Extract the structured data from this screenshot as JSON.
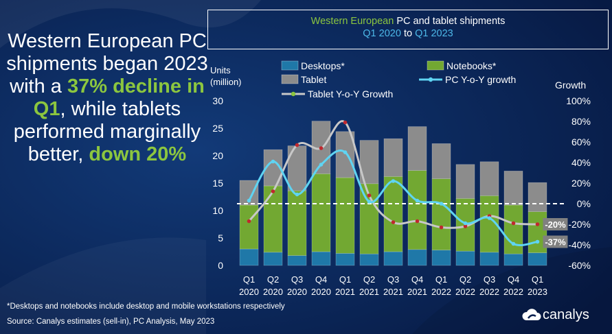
{
  "headline": {
    "p1": "Western European PC shipments began 2023 with a ",
    "h1": "37% decline in Q1",
    "p2": ", while tablets performed marginally better, ",
    "h2": "down 20%"
  },
  "title": {
    "w1": "Western European",
    "w2": " PC and tablet shipments",
    "w3": "Q1 2020",
    "w4": " to ",
    "w5": "Q1 2023"
  },
  "colors": {
    "desktop": "#1f78a8",
    "notebook": "#72a832",
    "tablet": "#8c8c8c",
    "pc_growth": "#5fd4f2",
    "tablet_growth": "#c8c8c8",
    "tablet_marker": "#c0282e"
  },
  "chart_data": {
    "type": "bar",
    "stacked": true,
    "categories": [
      [
        "Q1",
        "2020"
      ],
      [
        "Q2",
        "2020"
      ],
      [
        "Q3",
        "2020"
      ],
      [
        "Q4",
        "2020"
      ],
      [
        "Q1",
        "2021"
      ],
      [
        "Q2",
        "2021"
      ],
      [
        "Q3",
        "2021"
      ],
      [
        "Q4",
        "2021"
      ],
      [
        "Q1",
        "2022"
      ],
      [
        "Q2",
        "2022"
      ],
      [
        "Q3",
        "2022"
      ],
      [
        "Q4",
        "2022"
      ],
      [
        "Q1",
        "2023"
      ]
    ],
    "series": [
      {
        "name": "Desktops*",
        "values": [
          3.0,
          2.4,
          1.8,
          2.5,
          2.2,
          2.1,
          2.5,
          2.9,
          2.8,
          2.6,
          2.4,
          2.1,
          2.3
        ]
      },
      {
        "name": "Notebooks*",
        "values": [
          8.0,
          12.1,
          11.8,
          14.2,
          13.8,
          12.8,
          13.7,
          14.4,
          13.0,
          9.6,
          10.3,
          8.9,
          7.5
        ]
      },
      {
        "name": "Tablet",
        "values": [
          4.5,
          6.6,
          8.2,
          9.6,
          8.4,
          7.9,
          6.9,
          8.0,
          6.4,
          6.2,
          6.2,
          6.2,
          5.3
        ]
      }
    ],
    "lines": [
      {
        "name": "PC Y-o-Y growth",
        "values": [
          0.03,
          0.41,
          0.09,
          0.38,
          0.5,
          0.02,
          0.22,
          0.03,
          0.0,
          -0.19,
          -0.14,
          -0.39,
          -0.37
        ]
      },
      {
        "name": "Tablet Y-o-Y Growth",
        "values": [
          -0.17,
          0.12,
          0.57,
          0.54,
          0.79,
          0.08,
          -0.18,
          -0.17,
          -0.23,
          -0.22,
          -0.12,
          -0.19,
          -0.2
        ]
      }
    ],
    "ylabel_left": [
      "Units",
      "(million)"
    ],
    "ylabel_right": "Growth",
    "ylim_left": [
      0,
      30
    ],
    "yticks_left": [
      "0",
      "5",
      "10",
      "15",
      "20",
      "25",
      "30"
    ],
    "ylim_right": [
      -0.6,
      1.0
    ],
    "yticks_right": [
      "-60%",
      "-40%",
      "-20%",
      "0%",
      "20%",
      "40%",
      "60%",
      "80%",
      "100%"
    ],
    "annotations": [
      {
        "text": "-20%",
        "series": 1,
        "index": 12
      },
      {
        "text": "-37%",
        "series": 0,
        "index": 12
      }
    ],
    "zero_line": "dashed",
    "legend_position": "top"
  },
  "footnote": "*Desktops and notebooks  include desktop and mobile workstations respectively",
  "source": "Source:  Canalys estimates (sell-in), PC Analysis, May 2023",
  "logo_text": "canalys"
}
